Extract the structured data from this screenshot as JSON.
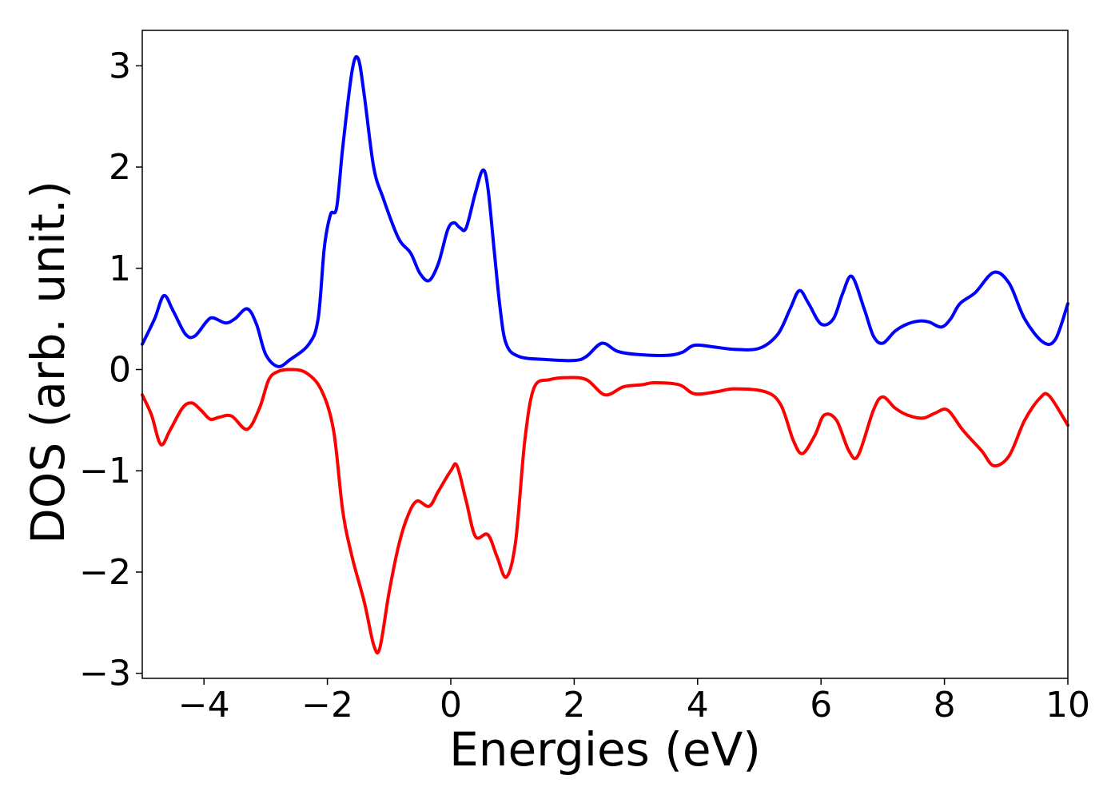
{
  "chart_data": {
    "type": "line",
    "title": "",
    "xlabel": "Energies (eV)",
    "ylabel": "DOS (arb. unit.)",
    "xlim": [
      -5,
      10
    ],
    "ylim": [
      -3.05,
      3.35
    ],
    "grid": false,
    "x_ticks": [
      -4,
      -2,
      0,
      2,
      4,
      6,
      8,
      10
    ],
    "x_tick_labels": [
      "−4",
      "−2",
      "0",
      "2",
      "4",
      "6",
      "8",
      "10"
    ],
    "y_ticks": [
      3,
      2,
      1,
      0,
      -1,
      -2,
      -3
    ],
    "y_tick_labels": [
      "3",
      "2",
      "1",
      "0",
      "−1",
      "−2",
      "−3"
    ],
    "series": [
      {
        "color": "#0000ff",
        "points": [
          [
            -5.0,
            0.25
          ],
          [
            -4.8,
            0.5
          ],
          [
            -4.65,
            0.73
          ],
          [
            -4.5,
            0.58
          ],
          [
            -4.3,
            0.35
          ],
          [
            -4.15,
            0.33
          ],
          [
            -3.95,
            0.48
          ],
          [
            -3.85,
            0.51
          ],
          [
            -3.65,
            0.46
          ],
          [
            -3.5,
            0.5
          ],
          [
            -3.3,
            0.6
          ],
          [
            -3.15,
            0.45
          ],
          [
            -3.0,
            0.15
          ],
          [
            -2.8,
            0.03
          ],
          [
            -2.6,
            0.1
          ],
          [
            -2.3,
            0.25
          ],
          [
            -2.15,
            0.5
          ],
          [
            -2.05,
            1.2
          ],
          [
            -1.95,
            1.53
          ],
          [
            -1.85,
            1.6
          ],
          [
            -1.75,
            2.2
          ],
          [
            -1.6,
            2.95
          ],
          [
            -1.5,
            3.07
          ],
          [
            -1.4,
            2.7
          ],
          [
            -1.25,
            2.0
          ],
          [
            -1.1,
            1.7
          ],
          [
            -0.85,
            1.3
          ],
          [
            -0.65,
            1.15
          ],
          [
            -0.5,
            0.95
          ],
          [
            -0.35,
            0.88
          ],
          [
            -0.2,
            1.05
          ],
          [
            -0.05,
            1.38
          ],
          [
            0.05,
            1.45
          ],
          [
            0.15,
            1.4
          ],
          [
            0.25,
            1.4
          ],
          [
            0.4,
            1.75
          ],
          [
            0.52,
            1.97
          ],
          [
            0.6,
            1.8
          ],
          [
            0.7,
            1.2
          ],
          [
            0.8,
            0.6
          ],
          [
            0.9,
            0.25
          ],
          [
            1.1,
            0.13
          ],
          [
            1.5,
            0.1
          ],
          [
            2.0,
            0.09
          ],
          [
            2.2,
            0.13
          ],
          [
            2.45,
            0.26
          ],
          [
            2.7,
            0.18
          ],
          [
            3.0,
            0.15
          ],
          [
            3.5,
            0.14
          ],
          [
            3.75,
            0.17
          ],
          [
            3.95,
            0.24
          ],
          [
            4.3,
            0.22
          ],
          [
            4.6,
            0.2
          ],
          [
            5.0,
            0.21
          ],
          [
            5.3,
            0.35
          ],
          [
            5.5,
            0.6
          ],
          [
            5.65,
            0.78
          ],
          [
            5.8,
            0.65
          ],
          [
            6.0,
            0.45
          ],
          [
            6.2,
            0.5
          ],
          [
            6.35,
            0.75
          ],
          [
            6.5,
            0.92
          ],
          [
            6.7,
            0.6
          ],
          [
            6.85,
            0.33
          ],
          [
            7.0,
            0.26
          ],
          [
            7.2,
            0.38
          ],
          [
            7.4,
            0.45
          ],
          [
            7.6,
            0.48
          ],
          [
            7.75,
            0.47
          ],
          [
            7.95,
            0.42
          ],
          [
            8.1,
            0.5
          ],
          [
            8.25,
            0.65
          ],
          [
            8.5,
            0.76
          ],
          [
            8.8,
            0.96
          ],
          [
            9.05,
            0.85
          ],
          [
            9.3,
            0.5
          ],
          [
            9.6,
            0.27
          ],
          [
            9.8,
            0.3
          ],
          [
            10.0,
            0.65
          ]
        ]
      },
      {
        "color": "#ff0000",
        "points": [
          [
            -5.0,
            -0.25
          ],
          [
            -4.85,
            -0.45
          ],
          [
            -4.7,
            -0.74
          ],
          [
            -4.55,
            -0.6
          ],
          [
            -4.35,
            -0.38
          ],
          [
            -4.2,
            -0.33
          ],
          [
            -4.05,
            -0.4
          ],
          [
            -3.9,
            -0.49
          ],
          [
            -3.75,
            -0.47
          ],
          [
            -3.55,
            -0.46
          ],
          [
            -3.3,
            -0.59
          ],
          [
            -3.1,
            -0.38
          ],
          [
            -2.95,
            -0.1
          ],
          [
            -2.8,
            -0.02
          ],
          [
            -2.6,
            0.0
          ],
          [
            -2.35,
            -0.03
          ],
          [
            -2.1,
            -0.2
          ],
          [
            -1.9,
            -0.6
          ],
          [
            -1.75,
            -1.4
          ],
          [
            -1.6,
            -1.85
          ],
          [
            -1.4,
            -2.3
          ],
          [
            -1.25,
            -2.72
          ],
          [
            -1.15,
            -2.75
          ],
          [
            -1.0,
            -2.2
          ],
          [
            -0.85,
            -1.75
          ],
          [
            -0.7,
            -1.45
          ],
          [
            -0.55,
            -1.3
          ],
          [
            -0.35,
            -1.35
          ],
          [
            -0.2,
            -1.2
          ],
          [
            0.0,
            -1.0
          ],
          [
            0.1,
            -0.95
          ],
          [
            0.25,
            -1.3
          ],
          [
            0.4,
            -1.65
          ],
          [
            0.6,
            -1.63
          ],
          [
            0.75,
            -1.85
          ],
          [
            0.9,
            -2.05
          ],
          [
            1.05,
            -1.7
          ],
          [
            1.2,
            -0.7
          ],
          [
            1.35,
            -0.18
          ],
          [
            1.6,
            -0.1
          ],
          [
            1.9,
            -0.08
          ],
          [
            2.2,
            -0.1
          ],
          [
            2.5,
            -0.25
          ],
          [
            2.8,
            -0.17
          ],
          [
            3.1,
            -0.15
          ],
          [
            3.3,
            -0.13
          ],
          [
            3.7,
            -0.15
          ],
          [
            3.95,
            -0.24
          ],
          [
            4.3,
            -0.22
          ],
          [
            4.6,
            -0.19
          ],
          [
            5.1,
            -0.22
          ],
          [
            5.35,
            -0.35
          ],
          [
            5.55,
            -0.7
          ],
          [
            5.7,
            -0.83
          ],
          [
            5.9,
            -0.65
          ],
          [
            6.05,
            -0.45
          ],
          [
            6.25,
            -0.5
          ],
          [
            6.45,
            -0.8
          ],
          [
            6.6,
            -0.85
          ],
          [
            6.85,
            -0.4
          ],
          [
            7.0,
            -0.27
          ],
          [
            7.2,
            -0.38
          ],
          [
            7.4,
            -0.45
          ],
          [
            7.65,
            -0.48
          ],
          [
            7.85,
            -0.43
          ],
          [
            8.05,
            -0.4
          ],
          [
            8.3,
            -0.6
          ],
          [
            8.6,
            -0.8
          ],
          [
            8.8,
            -0.95
          ],
          [
            9.05,
            -0.85
          ],
          [
            9.3,
            -0.5
          ],
          [
            9.55,
            -0.28
          ],
          [
            9.7,
            -0.26
          ],
          [
            10.0,
            -0.55
          ]
        ]
      }
    ]
  }
}
